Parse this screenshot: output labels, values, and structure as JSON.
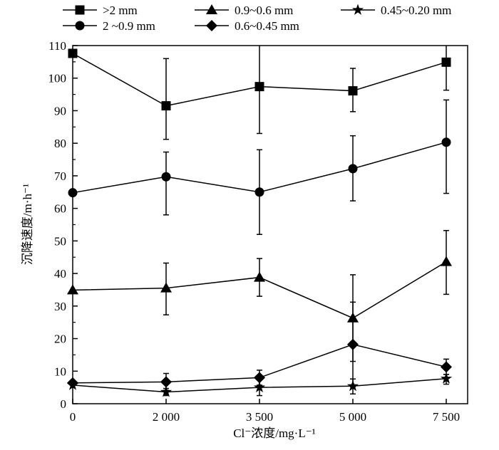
{
  "chart_data": {
    "type": "line",
    "xlabel": "Cl⁻浓度/mg·L⁻¹",
    "ylabel": "沉降速度/m·h⁻¹",
    "categories": [
      "0",
      "2 000",
      "3 500",
      "5 000",
      "7 500"
    ],
    "ylim": [
      0,
      110
    ],
    "yticks": [
      "0",
      "10",
      "20",
      "30",
      "40",
      "50",
      "60",
      "70",
      "80",
      "90",
      "100",
      "110"
    ],
    "grid": false,
    "legend_position": "top",
    "series": [
      {
        "name": ">2 mm",
        "marker": "square",
        "values": [
          107.6,
          91.5,
          97.4,
          96.1,
          104.9
        ],
        "err_low": [
          null,
          81.2,
          83.0,
          89.7,
          96.3
        ],
        "err_high": [
          null,
          106.0,
          110,
          103.0,
          110
        ]
      },
      {
        "name": "2 ~0.9 mm",
        "marker": "circle",
        "values": [
          64.8,
          69.7,
          65.0,
          72.2,
          80.3
        ],
        "err_low": [
          null,
          58.0,
          52.0,
          62.3,
          64.6
        ],
        "err_high": [
          null,
          77.3,
          78.0,
          82.3,
          93.3
        ]
      },
      {
        "name": "0.9~0.6 mm",
        "marker": "triangle",
        "values": [
          34.9,
          35.5,
          38.8,
          26.3,
          43.6
        ],
        "err_low": [
          null,
          27.3,
          33.0,
          13.0,
          33.6
        ],
        "err_high": [
          null,
          43.2,
          44.6,
          39.6,
          53.2
        ]
      },
      {
        "name": "0.6~0.45 mm",
        "marker": "diamond",
        "values": [
          6.4,
          6.7,
          8.0,
          18.2,
          11.3
        ],
        "err_low": [
          null,
          4.1,
          5.7,
          5.2,
          9.0
        ],
        "err_high": [
          null,
          9.3,
          10.3,
          31.2,
          13.7
        ]
      },
      {
        "name": "0.45~0.20 mm",
        "marker": "star",
        "values": [
          5.7,
          3.6,
          5.0,
          5.4,
          7.7
        ],
        "err_low": [
          null,
          2.5,
          2.5,
          3.0,
          6.0
        ],
        "err_high": [
          null,
          4.7,
          7.5,
          7.6,
          9.0
        ]
      }
    ]
  }
}
